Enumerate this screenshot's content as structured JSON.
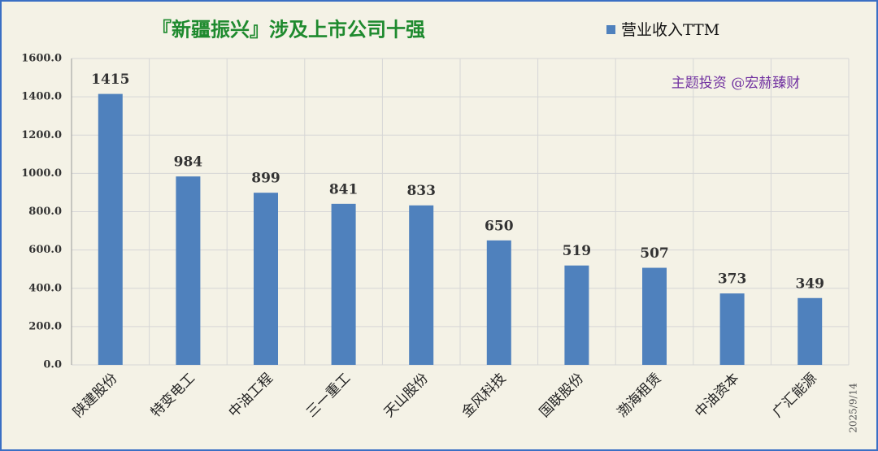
{
  "chart_data": {
    "type": "bar",
    "title": "『新疆振兴』涉及上市公司十强",
    "annotation": "主题投资 @宏赫臻财",
    "date": "2025/9/14",
    "categories": [
      "陕建股份",
      "特变电工",
      "中油工程",
      "三一重工",
      "天山股份",
      "金风科技",
      "国联股份",
      "渤海租赁",
      "中油资本",
      "广汇能源"
    ],
    "series": [
      {
        "name": "营业收入TTM",
        "color": "#4f81bd",
        "values": [
          1415,
          984,
          899,
          841,
          833,
          650,
          519,
          507,
          373,
          349
        ]
      }
    ],
    "ylim": [
      0,
      1600
    ],
    "yticks": [
      {
        "value": 0,
        "label": "0.0"
      },
      {
        "value": 200,
        "label": "200.0"
      },
      {
        "value": 400,
        "label": "400.0"
      },
      {
        "value": 600,
        "label": "600.0"
      },
      {
        "value": 800,
        "label": "800.0"
      },
      {
        "value": 1000,
        "label": "1000.0"
      },
      {
        "value": 1200,
        "label": "1200.0"
      },
      {
        "value": 1400,
        "label": "1400.0"
      },
      {
        "value": 1600,
        "label": "1600.0"
      }
    ],
    "grid": true,
    "legend": "top-right"
  }
}
